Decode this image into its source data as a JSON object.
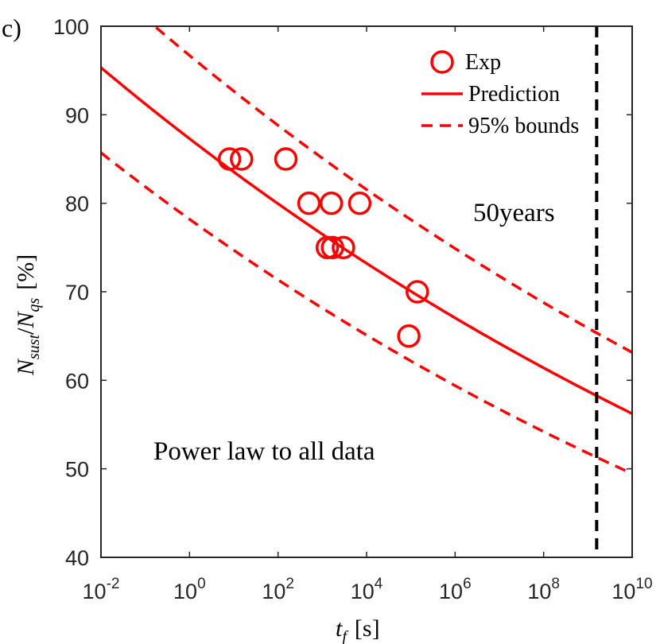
{
  "chart_data": {
    "type": "scatter",
    "panel_label": "c)",
    "title": "",
    "xlabel": {
      "symbol": "t",
      "subscript": "f",
      "unit": "[s]"
    },
    "ylabel": {
      "numerator": "N",
      "numerator_sub": "sust",
      "separator": "/",
      "denominator": "N",
      "denominator_sub": "qs",
      "unit": "[%]"
    },
    "x_scale": "log",
    "xlim_log10": [
      -2,
      10
    ],
    "ylim": [
      40,
      100
    ],
    "x_ticks": [
      {
        "base": "10",
        "exp": "-2",
        "log10": -2
      },
      {
        "base": "10",
        "exp": "0",
        "log10": 0
      },
      {
        "base": "10",
        "exp": "2",
        "log10": 2
      },
      {
        "base": "10",
        "exp": "4",
        "log10": 4
      },
      {
        "base": "10",
        "exp": "6",
        "log10": 6
      },
      {
        "base": "10",
        "exp": "8",
        "log10": 8
      },
      {
        "base": "10",
        "exp": "10",
        "log10": 10
      }
    ],
    "y_ticks": [
      "40",
      "50",
      "60",
      "70",
      "80",
      "90",
      "100"
    ],
    "grid": false,
    "legend_position": "top-right",
    "series": [
      {
        "name": "Exp",
        "kind": "markers",
        "marker": "circle",
        "color": "#ff0000",
        "points": [
          {
            "t": 8,
            "y": 85
          },
          {
            "t": 15,
            "y": 85
          },
          {
            "t": 150,
            "y": 85
          },
          {
            "t": 500,
            "y": 80
          },
          {
            "t": 1600,
            "y": 80
          },
          {
            "t": 7000,
            "y": 80
          },
          {
            "t": 1300,
            "y": 75
          },
          {
            "t": 1700,
            "y": 75
          },
          {
            "t": 3000,
            "y": 75
          },
          {
            "t": 90000,
            "y": 65
          },
          {
            "t": 140000,
            "y": 70
          }
        ]
      },
      {
        "name": "Prediction",
        "kind": "line",
        "style": "solid",
        "color": "#ff0000",
        "model": "power_law",
        "a": 87.3,
        "b": -0.0191
      },
      {
        "name": "95% bounds",
        "kind": "line",
        "style": "dashed",
        "color": "#ff0000",
        "model": "power_law",
        "a": 96.7,
        "b": -0.0185
      },
      {
        "name": "95% bounds",
        "kind": "line",
        "style": "dashed",
        "color": "#ff0000",
        "model": "power_law",
        "a": 78.2,
        "b": -0.0199,
        "in_legend": false
      }
    ],
    "reference_line": {
      "t": 1577000000,
      "label": "50years",
      "color": "#000000",
      "style": "dashed"
    },
    "annotation": "Power law to all data"
  }
}
